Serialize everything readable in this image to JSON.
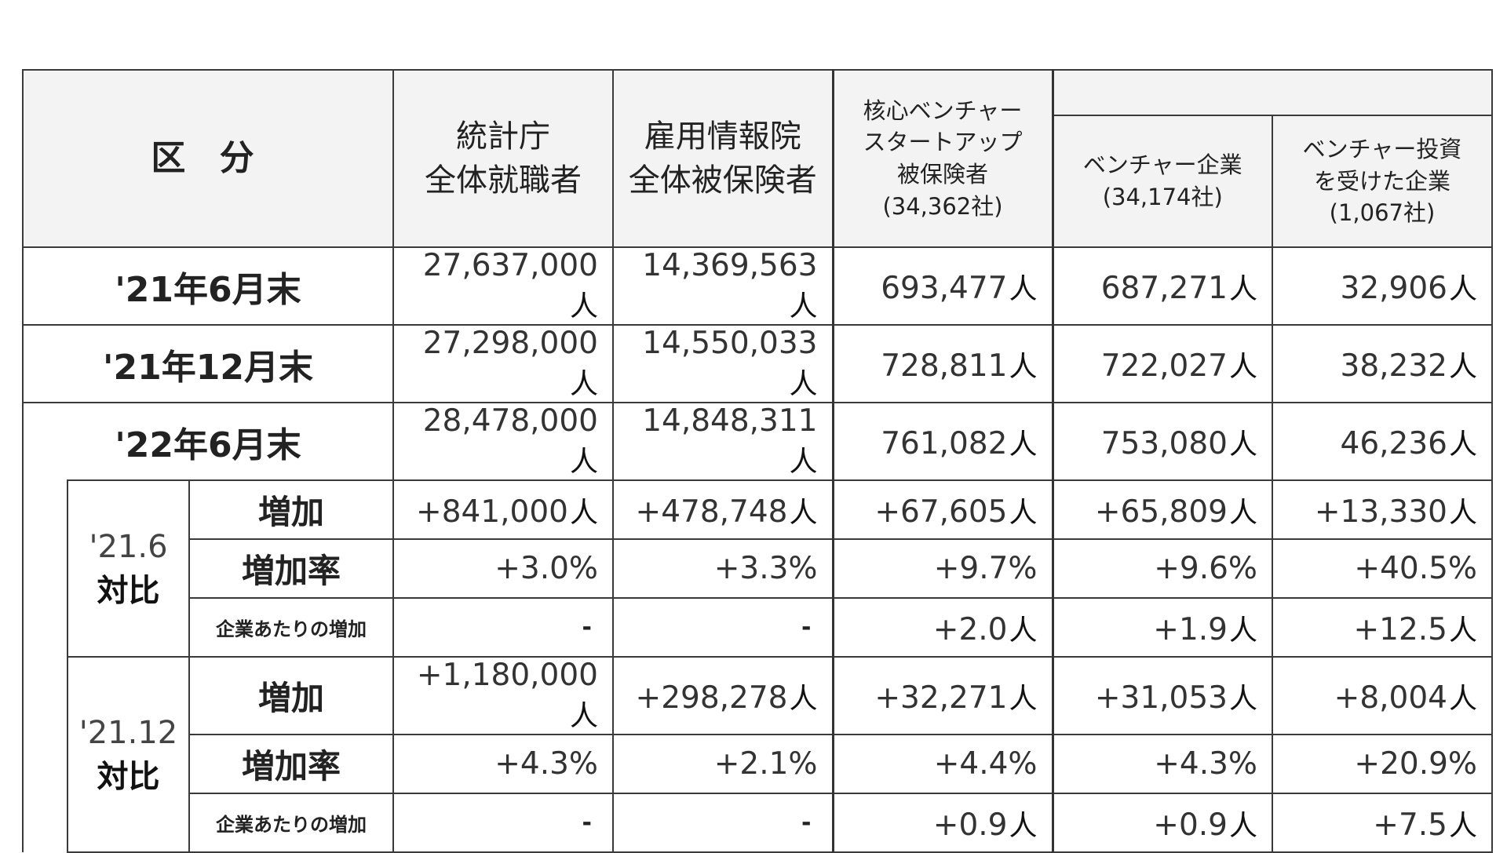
{
  "header": {
    "category": "区 分",
    "col1": [
      "統計庁",
      "全体就職者"
    ],
    "col2": [
      "雇用情報院",
      "全体被保険者"
    ],
    "col3": [
      "核心ベンチャー",
      "スタートアップ",
      "被保険者",
      "(34,362社)"
    ],
    "col4": [
      "ベンチャー企業",
      "(34,174社)"
    ],
    "col5": [
      "ベンチャー投資",
      "を受けた企業",
      "(1,067社)"
    ]
  },
  "rows": [
    {
      "label": "'21年6月末",
      "values": [
        "27,637,000",
        "14,369,563",
        "693,477",
        "687,271",
        "32,906"
      ],
      "unit": "人"
    },
    {
      "label": "'21年12月末",
      "values": [
        "27,298,000",
        "14,550,033",
        "728,811",
        "722,027",
        "38,232"
      ],
      "unit": "人"
    },
    {
      "label": "'22年6月末",
      "values": [
        "28,478,000",
        "14,848,311",
        "761,082",
        "753,080",
        "46,236"
      ],
      "unit": "人"
    }
  ],
  "groups": [
    {
      "ref": "'21.6",
      "label": "対比",
      "increase": {
        "label": "増加",
        "values": [
          "+841,000",
          "+478,748",
          "+67,605",
          "+65,809",
          "+13,330"
        ],
        "unit": "人"
      },
      "rate": {
        "label": "増加率",
        "values": [
          "+3.0%",
          "+3.3%",
          "+9.7%",
          "+9.6%",
          "+40.5%"
        ]
      },
      "per_company": {
        "label": "企業あたりの増加",
        "values": [
          "-",
          "-",
          "+2.0",
          "+1.9",
          "+12.5"
        ],
        "unit": "人"
      }
    },
    {
      "ref": "'21.12",
      "label": "対比",
      "increase": {
        "label": "増加",
        "values": [
          "+1,180,000",
          "+298,278",
          "+32,271",
          "+31,053",
          "+8,004"
        ],
        "unit": "人"
      },
      "rate": {
        "label": "増加率",
        "values": [
          "+4.3%",
          "+2.1%",
          "+4.4%",
          "+4.3%",
          "+20.9%"
        ]
      },
      "per_company": {
        "label": "企業あたりの増加",
        "values": [
          "-",
          "-",
          "+0.9",
          "+0.9",
          "+7.5"
        ],
        "unit": "人"
      }
    }
  ]
}
